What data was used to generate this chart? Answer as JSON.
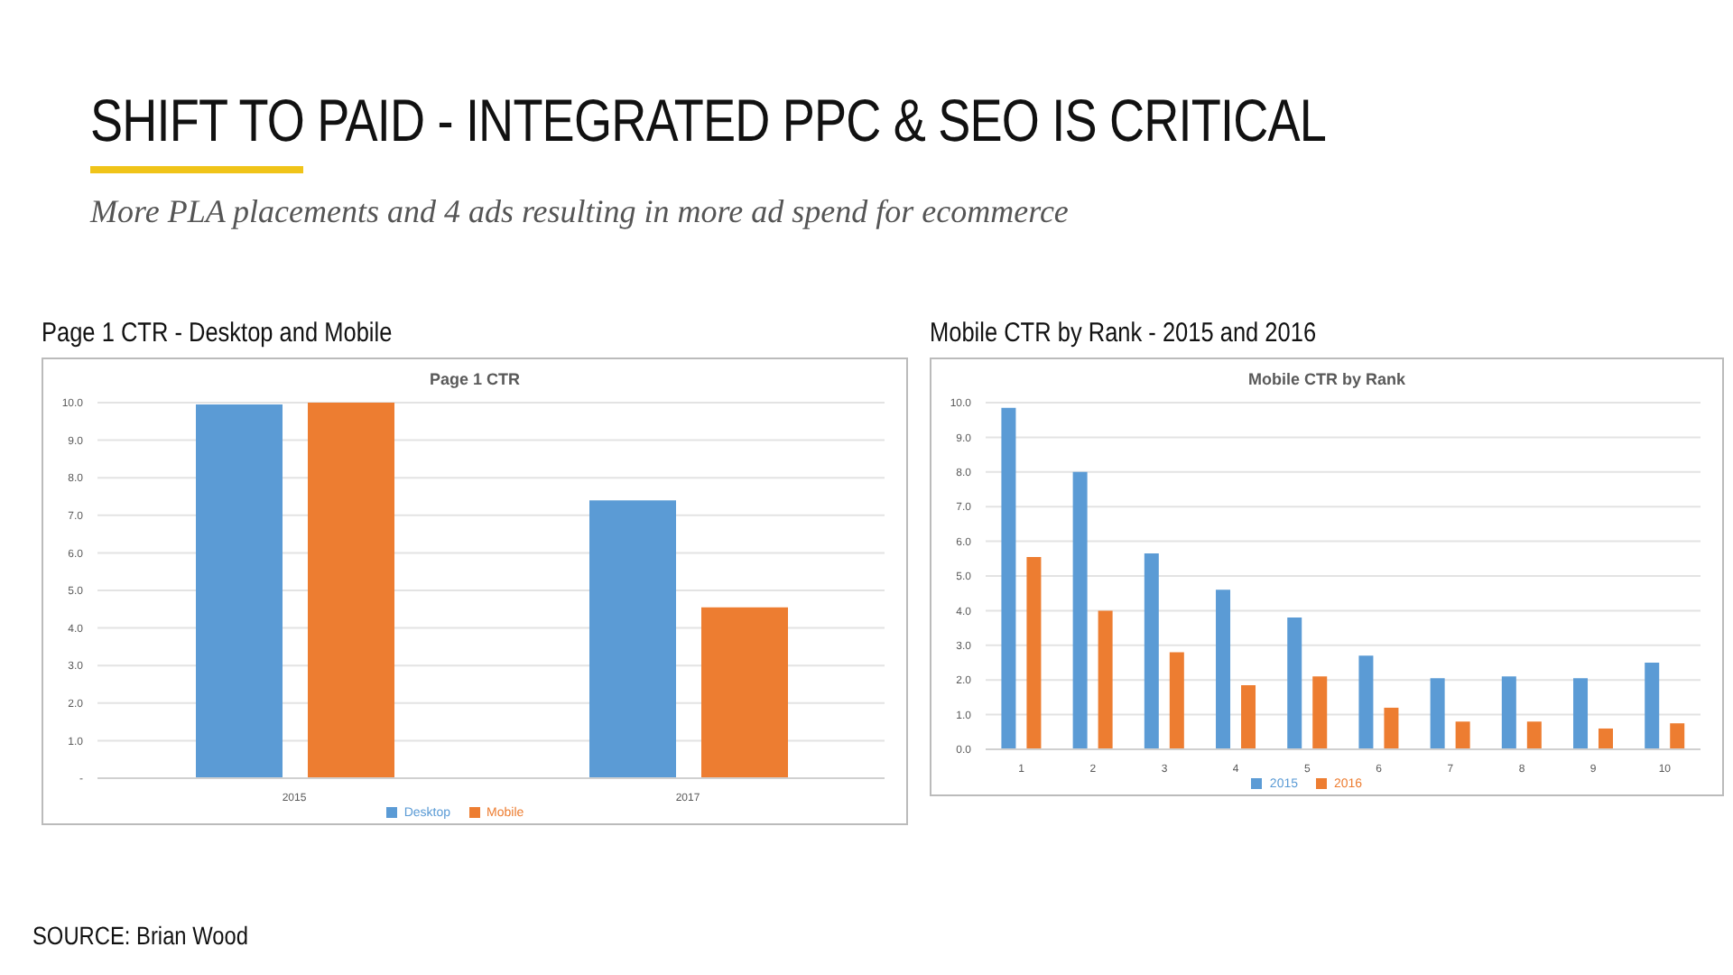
{
  "chart_data": [
    {
      "type": "other",
      "title": "SHIFT TO PAID - INTEGRATED PPC & SEO IS CRITICAL",
      "subtitle": "More PLA placements and 4 ads resulting in more ad spend for ecommerce",
      "annotations": [
        "SOURCE: Brian Wood"
      ]
    },
    {
      "type": "bar",
      "subtitle": "Page 1 CTR - Desktop and Mobile",
      "title": "Page 1 CTR",
      "categories": [
        "2015",
        "2017"
      ],
      "series": [
        {
          "name": "Desktop",
          "color": "#5b9bd5",
          "values": [
            9.95,
            7.4
          ]
        },
        {
          "name": "Mobile",
          "color": "#ed7d31",
          "values": [
            10.0,
            4.55
          ]
        }
      ],
      "ylim": [
        0,
        10
      ],
      "yticks": [
        {
          "value": 0,
          "label": "-"
        },
        {
          "value": 1,
          "label": "1.0"
        },
        {
          "value": 2,
          "label": "2.0"
        },
        {
          "value": 3,
          "label": "3.0"
        },
        {
          "value": 4,
          "label": "4.0"
        },
        {
          "value": 5,
          "label": "5.0"
        },
        {
          "value": 6,
          "label": "6.0"
        },
        {
          "value": 7,
          "label": "7.0"
        },
        {
          "value": 8,
          "label": "8.0"
        },
        {
          "value": 9,
          "label": "9.0"
        },
        {
          "value": 10,
          "label": "10.0"
        }
      ],
      "grid": "y",
      "legend": "bottom"
    },
    {
      "type": "bar",
      "subtitle": "Mobile CTR by Rank - 2015 and 2016",
      "title": "Mobile CTR by Rank",
      "categories": [
        "1",
        "2",
        "3",
        "4",
        "5",
        "6",
        "7",
        "8",
        "9",
        "10"
      ],
      "series": [
        {
          "name": "2015",
          "color": "#5b9bd5",
          "values": [
            9.85,
            8.0,
            5.65,
            4.6,
            3.8,
            2.7,
            2.05,
            2.1,
            2.05,
            2.5
          ]
        },
        {
          "name": "2016",
          "color": "#ed7d31",
          "values": [
            5.55,
            4.0,
            2.8,
            1.85,
            2.1,
            1.2,
            0.8,
            0.8,
            0.6,
            0.75
          ]
        }
      ],
      "ylim": [
        0,
        10
      ],
      "yticks": [
        {
          "value": 0,
          "label": "0.0"
        },
        {
          "value": 1,
          "label": "1.0"
        },
        {
          "value": 2,
          "label": "2.0"
        },
        {
          "value": 3,
          "label": "3.0"
        },
        {
          "value": 4,
          "label": "4.0"
        },
        {
          "value": 5,
          "label": "5.0"
        },
        {
          "value": 6,
          "label": "6.0"
        },
        {
          "value": 7,
          "label": "7.0"
        },
        {
          "value": 8,
          "label": "8.0"
        },
        {
          "value": 9,
          "label": "9.0"
        },
        {
          "value": 10,
          "label": "10.0"
        }
      ],
      "grid": "y",
      "legend": "bottom"
    }
  ]
}
